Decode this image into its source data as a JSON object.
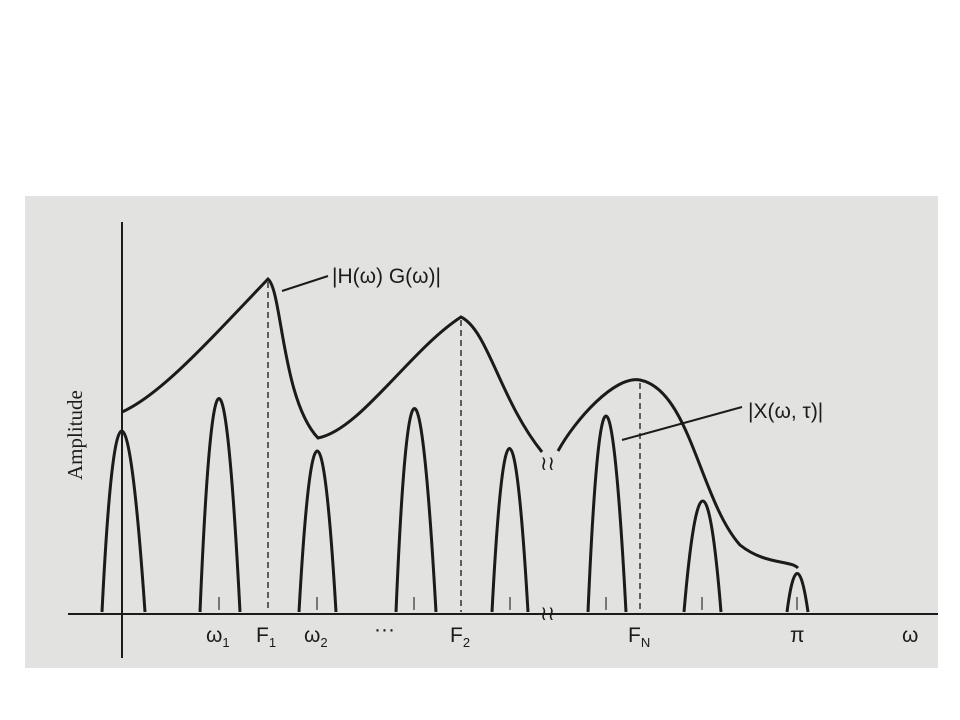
{
  "figure": {
    "y_axis_label": "Amplitude",
    "x_axis_label": "ω",
    "envelope_label": "|H(ω) G(ω)|",
    "spectrum_label": "|X(ω, τ)|",
    "break_symbol": "≀≀",
    "ellipsis": "···",
    "tick_labels": [
      {
        "id": "omega-1",
        "main": "ω",
        "sub": "1"
      },
      {
        "id": "F-1",
        "main": "F",
        "sub": "1"
      },
      {
        "id": "omega-2",
        "main": "ω",
        "sub": "2"
      },
      {
        "id": "F-2",
        "main": "F",
        "sub": "2"
      },
      {
        "id": "F-N",
        "main": "F",
        "sub": "N"
      },
      {
        "id": "pi",
        "main": "π",
        "sub": ""
      }
    ],
    "colors": {
      "panel": "#e2e2e0",
      "ink": "#1b1b1b"
    }
  }
}
